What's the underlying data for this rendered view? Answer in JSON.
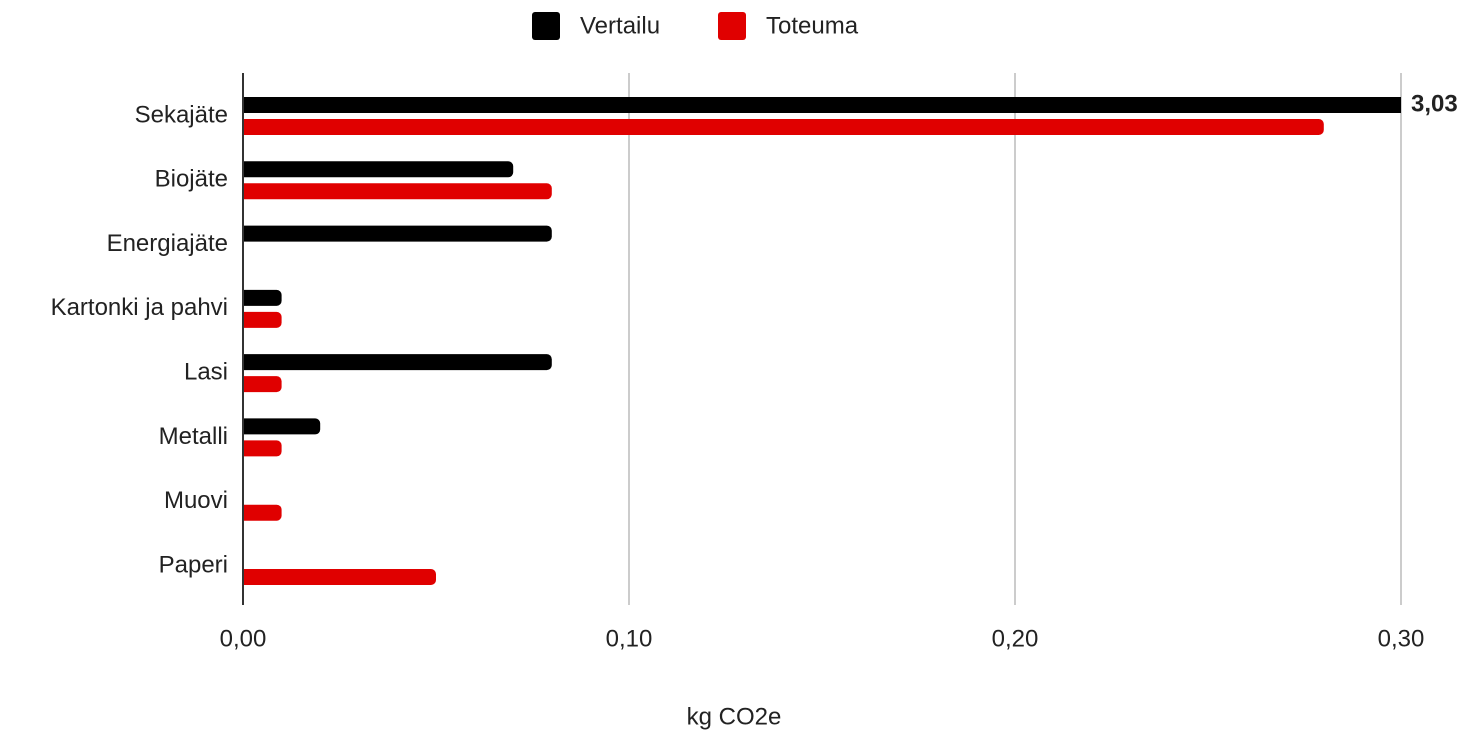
{
  "chart_data": {
    "type": "bar",
    "orientation": "horizontal",
    "categories": [
      "Sekajäte",
      "Biojäte",
      "Energiajäte",
      "Kartonki ja pahvi",
      "Lasi",
      "Metalli",
      "Muovi",
      "Paperi"
    ],
    "series": [
      {
        "name": "Vertailu",
        "color": "#000000",
        "values": [
          3.03,
          0.07,
          0.08,
          0.01,
          0.08,
          0.02,
          null,
          null
        ],
        "value_labels": [
          "3,03",
          null,
          null,
          null,
          null,
          null,
          null,
          null
        ]
      },
      {
        "name": "Toteuma",
        "color": "#e00000",
        "values": [
          0.28,
          0.08,
          null,
          0.01,
          0.01,
          0.01,
          0.01,
          0.05
        ]
      }
    ],
    "x_label": "kg CO2e",
    "xlim": [
      0,
      0.3
    ],
    "xticks": [
      {
        "value": 0,
        "label": "0,00"
      },
      {
        "value": 0.1,
        "label": "0,10"
      },
      {
        "value": 0.2,
        "label": "0,20"
      },
      {
        "value": 0.3,
        "label": "0,30"
      }
    ],
    "grid": true,
    "legend": "top"
  }
}
